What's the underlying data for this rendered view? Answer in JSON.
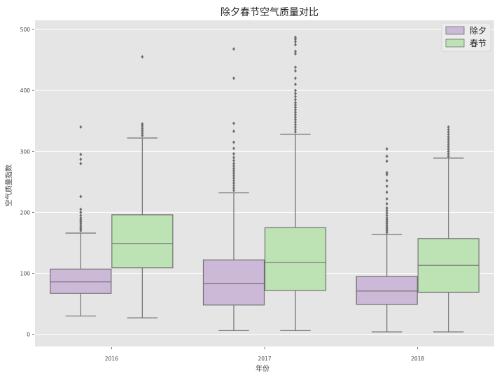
{
  "chart_data": {
    "type": "boxplot",
    "title": "除夕春节空气质量对比",
    "xlabel": "年份",
    "ylabel": "空气质量指数",
    "categories": [
      "2016",
      "2017",
      "2018"
    ],
    "yticks": [
      0,
      100,
      200,
      300,
      400,
      500
    ],
    "ylim": [
      -20,
      515
    ],
    "grid": true,
    "legend_position": "top-right",
    "colors": {
      "除夕": "#ccb9d8",
      "春节": "#bde3b5",
      "background": "#e5e5e5",
      "grid": "#ffffff",
      "stroke": "#707070"
    },
    "series": [
      {
        "name": "除夕",
        "boxes": [
          {
            "whislo": 30,
            "q1": 67,
            "med": 86,
            "q3": 107,
            "whishi": 166,
            "fliers": [
              170,
              173,
              176,
              179,
              182,
              185,
              188,
              191,
              195,
              200,
              205,
              226,
              280,
              287,
              295,
              340
            ]
          },
          {
            "whislo": 6,
            "q1": 48,
            "med": 83,
            "q3": 122,
            "whishi": 232,
            "fliers": [
              236,
              240,
              244,
              248,
              252,
              256,
              260,
              264,
              268,
              272,
              276,
              280,
              285,
              290,
              296,
              305,
              315,
              333,
              346,
              420,
              468
            ]
          },
          {
            "whislo": 4,
            "q1": 49,
            "med": 71,
            "q3": 95,
            "whishi": 164,
            "fliers": [
              167,
              170,
              173,
              176,
              179,
              182,
              185,
              188,
              191,
              195,
              199,
              203,
              207,
              214,
              222,
              233,
              243,
              252,
              262,
              265,
              284,
              292,
              304
            ]
          }
        ]
      },
      {
        "name": "春节",
        "boxes": [
          {
            "whislo": 27,
            "q1": 109,
            "med": 149,
            "q3": 196,
            "whishi": 322,
            "fliers": [
              326,
              330,
              334,
              338,
              342,
              345,
              455
            ]
          },
          {
            "whislo": 6,
            "q1": 72,
            "med": 118,
            "q3": 175,
            "whishi": 328,
            "fliers": [
              332,
              336,
              340,
              344,
              348,
              352,
              356,
              360,
              364,
              368,
              372,
              376,
              380,
              385,
              390,
              395,
              400,
              410,
              420,
              432,
              438,
              460,
              464,
              475,
              480,
              484,
              487
            ]
          },
          {
            "whislo": 4,
            "q1": 69,
            "med": 113,
            "q3": 157,
            "whishi": 289,
            "fliers": [
              292,
              296,
              300,
              304,
              308,
              312,
              316,
              320,
              324,
              328,
              332,
              336,
              340
            ]
          }
        ]
      }
    ]
  }
}
